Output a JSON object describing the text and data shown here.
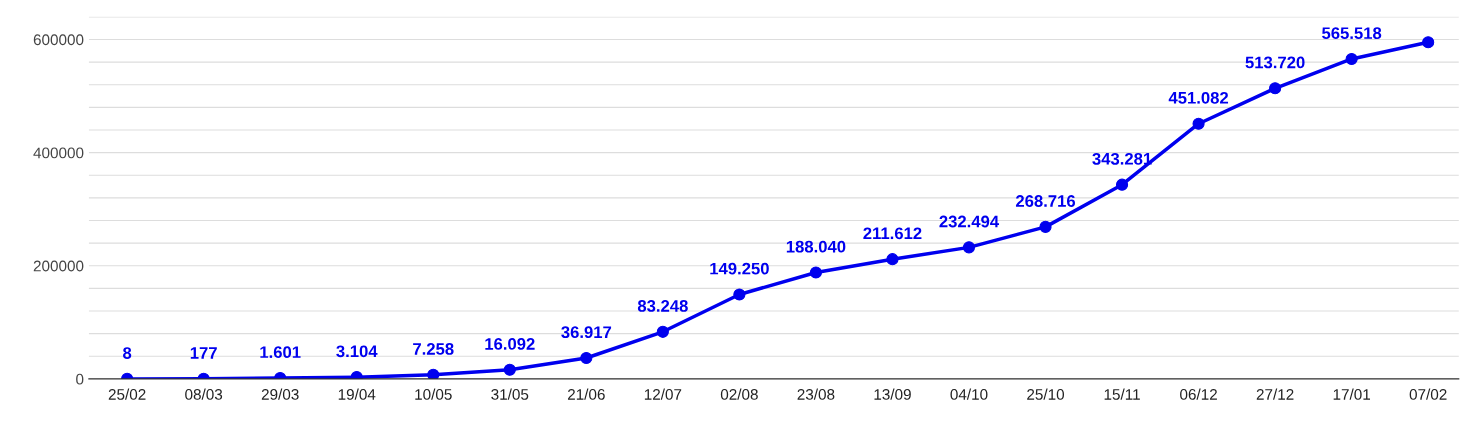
{
  "chart_data": {
    "type": "line",
    "categories": [
      "25/02",
      "08/03",
      "29/03",
      "19/04",
      "10/05",
      "31/05",
      "21/06",
      "12/07",
      "02/08",
      "23/08",
      "13/09",
      "04/10",
      "25/10",
      "15/11",
      "06/12",
      "27/12",
      "17/01",
      "07/02"
    ],
    "series": [
      {
        "color": "#0000ee",
        "values": [
          8,
          177,
          1601,
          3104,
          7258,
          16092,
          36917,
          83248,
          149250,
          188040,
          211612,
          232494,
          268716,
          343281,
          451082,
          513720,
          565518,
          595000
        ],
        "value_labels": [
          "8",
          "177",
          "1.601",
          "3.104",
          "7.258",
          "16.092",
          "36.917",
          "83.248",
          "149.250",
          "188.040",
          "211.612",
          "232.494",
          "268.716",
          "343.281",
          "451.082",
          "513.720",
          "565.518",
          null
        ]
      }
    ],
    "ylim": [
      0,
      640000
    ],
    "yticks": [
      0,
      {
        "value": 40000,
        "label": null
      },
      {
        "value": 80000,
        "label": null
      },
      {
        "value": 120000,
        "label": null
      },
      {
        "value": 160000,
        "label": null
      },
      200000,
      {
        "value": 240000,
        "label": null
      },
      {
        "value": 280000,
        "label": null
      },
      {
        "value": 320000,
        "label": null
      },
      {
        "value": 360000,
        "label": null
      },
      400000,
      {
        "value": 440000,
        "label": null
      },
      {
        "value": 480000,
        "label": null
      },
      {
        "value": 520000,
        "label": null
      },
      {
        "value": 560000,
        "label": null
      },
      600000,
      {
        "value": 640000,
        "label": null
      }
    ],
    "grid": "y",
    "marker": "circle",
    "line_style": "solid",
    "legend": false
  }
}
